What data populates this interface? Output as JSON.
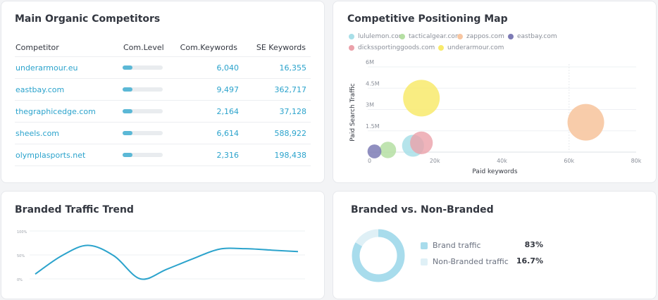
{
  "competitors": {
    "title": "Main Organic Competitors",
    "headers": {
      "competitor": "Competitor",
      "level": "Com.Level",
      "keywords": "Com.Keywords",
      "se": "SE Keywords"
    },
    "rows": [
      {
        "name": "underarmour.eu",
        "level": 0.25,
        "keywords": "6,040",
        "se": "16,355"
      },
      {
        "name": "eastbay.com",
        "level": 0.25,
        "keywords": "9,497",
        "se": "362,717"
      },
      {
        "name": "thegraphicedge.com",
        "level": 0.25,
        "keywords": "2,164",
        "se": "37,128"
      },
      {
        "name": "sheels.com",
        "level": 0.25,
        "keywords": "6,614",
        "se": "588,922"
      },
      {
        "name": "olymplasports.net",
        "level": 0.25,
        "keywords": "2,316",
        "se": "198,438"
      }
    ]
  },
  "positioning": {
    "title": "Competitive Positioning Map",
    "legend": [
      {
        "name": "lululemon.com",
        "color": "#a8dfe8"
      },
      {
        "name": "tacticalgear.com",
        "color": "#b5dfa3"
      },
      {
        "name": "zappos.com",
        "color": "#f7c6a1"
      },
      {
        "name": "eastbay.com",
        "color": "#7d7bb5"
      },
      {
        "name": "dickssportinggoods.com",
        "color": "#eba1aa"
      },
      {
        "name": "underarmour.com",
        "color": "#f8ea6c"
      }
    ],
    "chart_data": {
      "type": "scatter",
      "title": "Competitive Positioning Map",
      "xlabel": "Paid keywords",
      "ylabel": "Paid Search Traffic",
      "xlim": [
        0,
        80000
      ],
      "ylim": [
        0,
        6000000
      ],
      "xticks": [
        "0",
        "20k",
        "40k",
        "60k",
        "80k"
      ],
      "yticks": [
        "1.5M",
        "3M",
        "4.5M",
        "6M"
      ],
      "series": [
        {
          "name": "underarmour.com",
          "x": 16000,
          "y": 3800000,
          "size": 1.0,
          "color": "#f8ea6c",
          "opacity": 0.85
        },
        {
          "name": "zappos.com",
          "x": 65000,
          "y": 2100000,
          "size": 1.0,
          "color": "#f7c6a1",
          "opacity": 0.9
        },
        {
          "name": "lululemon.com",
          "x": 13500,
          "y": 450000,
          "size": 0.6,
          "color": "#a8dfe8",
          "opacity": 0.85
        },
        {
          "name": "dickssportinggoods.com",
          "x": 16000,
          "y": 650000,
          "size": 0.62,
          "color": "#eba1aa",
          "opacity": 0.8
        },
        {
          "name": "tacticalgear.com",
          "x": 6000,
          "y": 150000,
          "size": 0.45,
          "color": "#b5dfa3",
          "opacity": 0.85
        },
        {
          "name": "eastbay.com",
          "x": 2000,
          "y": 50000,
          "size": 0.38,
          "color": "#7d7bb5",
          "opacity": 0.85
        }
      ]
    }
  },
  "trend": {
    "title": "Branded Traffic Trend",
    "chart_data": {
      "type": "line",
      "title": "Branded Traffic Trend",
      "yticks": [
        "100%",
        "50%",
        "0%"
      ],
      "ylim": [
        0,
        100
      ],
      "values": [
        10,
        48,
        70,
        48,
        0,
        20,
        42,
        62,
        63,
        60,
        57
      ],
      "color": "#2ba3cc"
    }
  },
  "branded": {
    "title": "Branded vs. Non-Branded",
    "items": [
      {
        "label": "Brand traffic",
        "value": "83%",
        "color": "#a8dcec"
      },
      {
        "label": "Non-Branded traffic",
        "value": "16.7%",
        "color": "#dff0f6"
      }
    ],
    "chart_data": {
      "type": "pie",
      "categories": [
        "Brand traffic",
        "Non-Branded traffic"
      ],
      "values": [
        83,
        16.7
      ]
    }
  }
}
